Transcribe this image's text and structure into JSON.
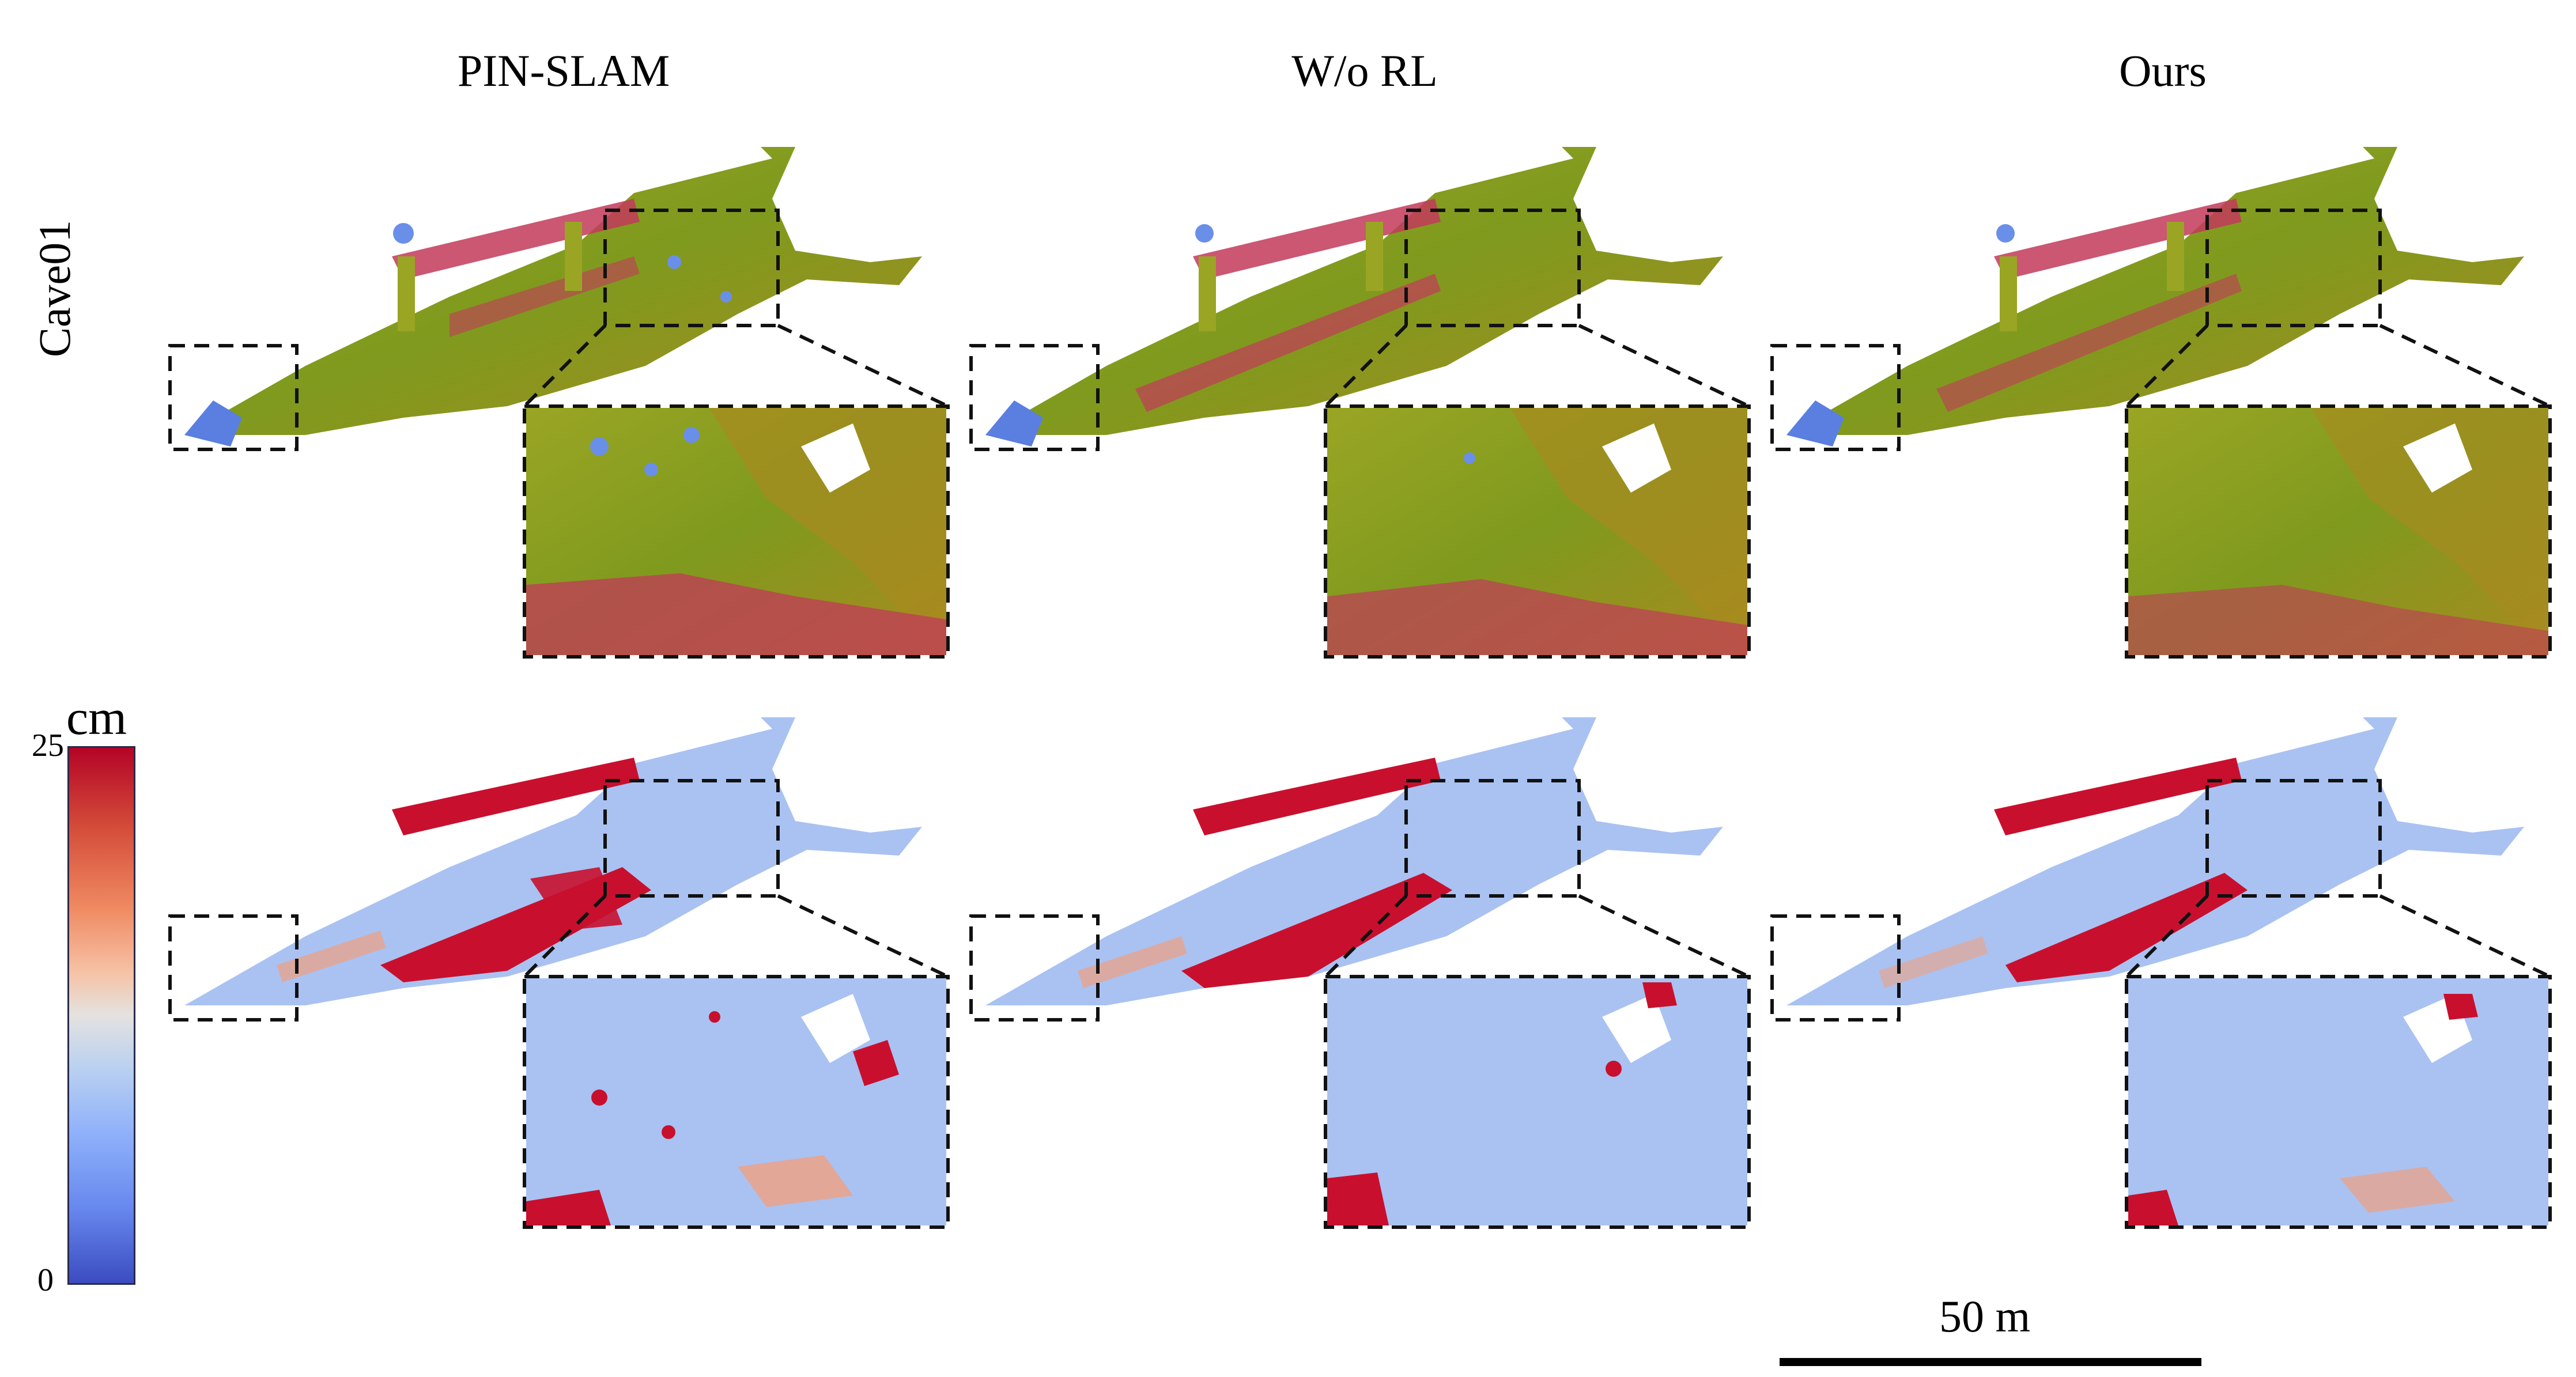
{
  "columns": {
    "pin_slam": "PIN-SLAM",
    "wo_rl": "W/o RL",
    "ours": "Ours"
  },
  "row_label": "Cave01",
  "colorbar": {
    "unit": "cm",
    "max": "25",
    "min": "0",
    "colors": [
      "#b40426",
      "#e4e2e0",
      "#3b4cc0"
    ]
  },
  "scale_bar": {
    "label": "50 m"
  },
  "colors": {
    "mesh_green": "#8a9a1c",
    "mesh_red": "#c23a5a",
    "mesh_blue": "#5a7fe0",
    "error_blue": "#a9c2f2",
    "error_red": "#c8102e"
  }
}
